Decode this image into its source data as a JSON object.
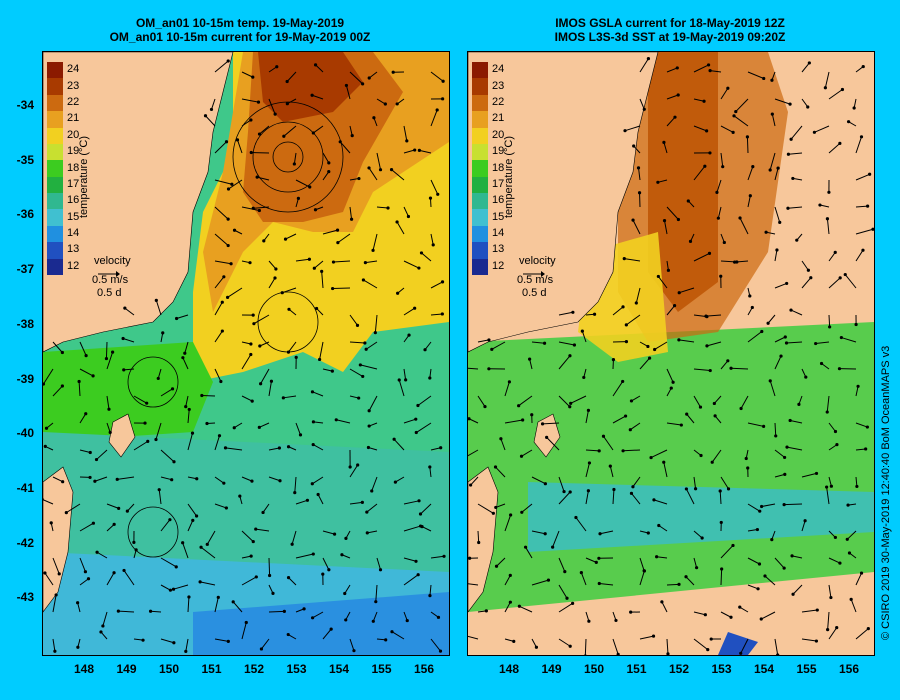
{
  "left_panel": {
    "title_line1": "OM_an01 10-15m temp. 19-May-2019",
    "title_line2": "OM_an01 10-15m current for 19-May-2019 00Z"
  },
  "right_panel": {
    "title_line1": "IMOS GSLA current for 18-May-2019 12Z",
    "title_line2": "IMOS L3S-3d SST at 19-May-2019 09:20Z"
  },
  "colorbar": {
    "label": "temperature (°C)",
    "ticks": [
      "24",
      "23",
      "22",
      "21",
      "20",
      "19",
      "18",
      "17",
      "16",
      "15",
      "14",
      "13",
      "12"
    ],
    "colors": [
      "#8b1a00",
      "#a83a00",
      "#cc6a10",
      "#e8a020",
      "#f2d020",
      "#c8e030",
      "#3ccc20",
      "#22b040",
      "#30b890",
      "#40c0d0",
      "#2090e0",
      "#2050c0",
      "#1a2a90"
    ]
  },
  "velocity_legend": {
    "title": "velocity",
    "speed": "0.5 m/s",
    "time": "0.5 d"
  },
  "axes": {
    "y_ticks": [
      "-34",
      "-35",
      "-36",
      "-37",
      "-38",
      "-39",
      "-40",
      "-41",
      "-42",
      "-43"
    ],
    "x_ticks": [
      "148",
      "149",
      "150",
      "151",
      "152",
      "153",
      "154",
      "155",
      "156"
    ]
  },
  "copyright": "© CSIRO 2019   30-May-2019 12:40:40 BoM OceanMAPS v3"
}
